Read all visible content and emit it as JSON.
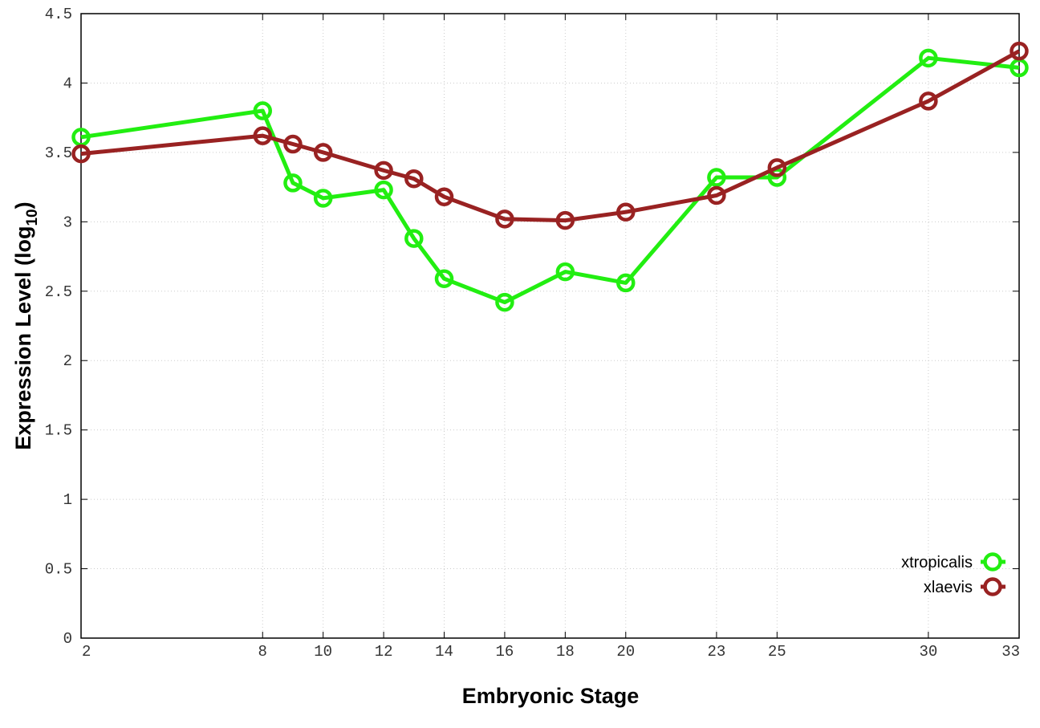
{
  "chart_data": {
    "type": "line",
    "xlabel": "Embryonic Stage",
    "ylabel_main": "Expression Level (log",
    "ylabel_sub": "10",
    "ylabel_close": ")",
    "xlim": [
      2,
      33
    ],
    "ylim": [
      0,
      4.5
    ],
    "xticks": [
      2,
      8,
      10,
      12,
      14,
      16,
      18,
      20,
      23,
      25,
      30,
      33
    ],
    "yticks": [
      0,
      0.5,
      1,
      1.5,
      2,
      2.5,
      3,
      3.5,
      4,
      4.5
    ],
    "ytick_labels": [
      "0",
      "0.5",
      "1",
      "1.5",
      "2",
      "2.5",
      "3",
      "3.5",
      "4",
      "4.5"
    ],
    "grid": true,
    "legend_position": "bottom-right",
    "x": [
      2,
      8,
      9,
      10,
      12,
      13,
      14,
      16,
      18,
      20,
      23,
      25,
      30,
      33
    ],
    "series": [
      {
        "name": "xtropicalis",
        "color": "#22ee11",
        "values": [
          3.61,
          3.8,
          3.28,
          3.17,
          3.23,
          2.88,
          2.59,
          2.42,
          2.64,
          2.56,
          3.32,
          3.32,
          4.18,
          4.11
        ]
      },
      {
        "name": "xlaevis",
        "color": "#992222",
        "values": [
          3.49,
          3.62,
          3.56,
          3.5,
          3.37,
          3.31,
          3.18,
          3.02,
          3.01,
          3.07,
          3.19,
          3.39,
          3.87,
          4.23
        ]
      }
    ]
  }
}
